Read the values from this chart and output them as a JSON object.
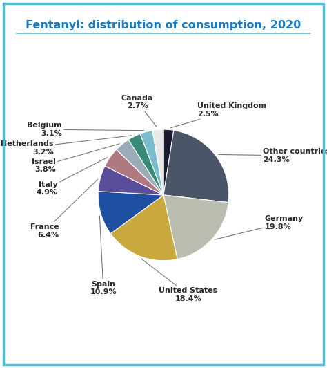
{
  "title": "Fentanyl: distribution of consumption, 2020",
  "ordered_slices": [
    {
      "label": "United Kingdom",
      "value": 2.5,
      "color": "#1a1a2e"
    },
    {
      "label": "Other countries",
      "value": 24.3,
      "color": "#4a5568"
    },
    {
      "label": "Germany",
      "value": 19.8,
      "color": "#b8bdb0"
    },
    {
      "label": "United States",
      "value": 18.4,
      "color": "#c9a93e"
    },
    {
      "label": "Spain",
      "value": 10.9,
      "color": "#1e4fa0"
    },
    {
      "label": "France",
      "value": 6.4,
      "color": "#5a4e9a"
    },
    {
      "label": "Italy",
      "value": 4.9,
      "color": "#b07880"
    },
    {
      "label": "Israel",
      "value": 3.8,
      "color": "#9aacb8"
    },
    {
      "label": "Netherlands",
      "value": 3.2,
      "color": "#3a8a78"
    },
    {
      "label": "Belgium",
      "value": 3.1,
      "color": "#7abccc"
    },
    {
      "label": "Canada",
      "value": 2.7,
      "color": "#e8e8e8"
    }
  ],
  "title_color": "#1a7abf",
  "title_fontsize": 11.5,
  "border_color": "#5ab8d4",
  "background_color": "#ffffff",
  "label_fontsize": 8.0,
  "startangle": 90
}
